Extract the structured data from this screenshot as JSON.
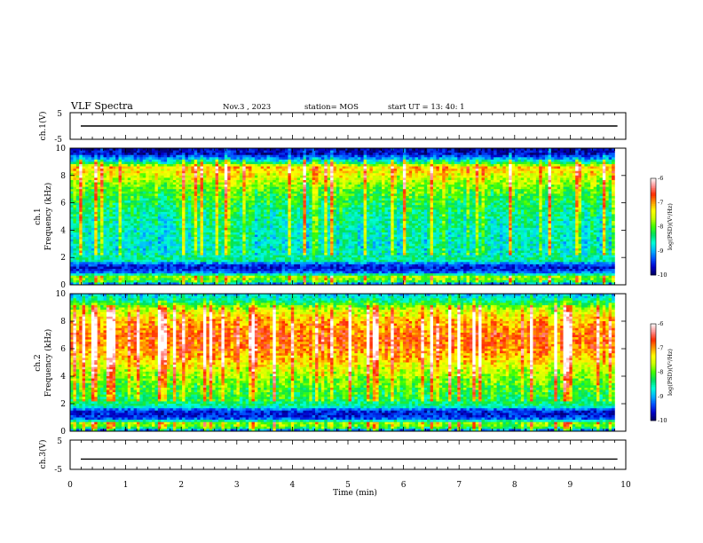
{
  "header": {
    "title": "VLF Spectra",
    "date": "Nov.3  , 2023",
    "station": "station= MOS",
    "start_ut": "start  UT =  13: 40: 1"
  },
  "colors": {
    "colormap": [
      "#000060",
      "#0000c8",
      "#0050ff",
      "#00b4ff",
      "#00ffd8",
      "#00e060",
      "#40ff00",
      "#c8ff00",
      "#ffff00",
      "#ff9a00",
      "#ff2a00",
      "#ff9090",
      "#ffffff"
    ],
    "axis": "#000000",
    "background": "#ffffff"
  },
  "chart_data": [
    {
      "id": "ch1_waveform",
      "type": "line",
      "ylabel": "ch.1(V)",
      "ylim": [
        -5,
        5
      ],
      "yticks": [
        "5",
        "-5"
      ],
      "xlim": [
        0,
        10
      ],
      "trace_level": 0
    },
    {
      "id": "ch1_spectrogram",
      "type": "heatmap",
      "ylabel": "ch.1\nFrequency (kHz)",
      "ylabel_lines": [
        "ch.1",
        "Frequency (kHz)"
      ],
      "ylim": [
        0,
        10
      ],
      "yticks": [
        "0",
        "2",
        "4",
        "6",
        "8",
        "10"
      ],
      "xlim": [
        0,
        10
      ],
      "data_end_min": 9.8,
      "colorbar": {
        "label": "log(PSD)(V²/Hz)",
        "range": [
          -10,
          -6
        ],
        "ticks": [
          "-6",
          "-7",
          "-8",
          "-9",
          "-10"
        ]
      },
      "profile": {
        "freq_khz": [
          0,
          0.3,
          0.6,
          0.9,
          1.2,
          1.5,
          1.8,
          2.2,
          3,
          4,
          5,
          6,
          7,
          8,
          8.6,
          9.0,
          9.3,
          9.6,
          10
        ],
        "log_psd": [
          -9.5,
          -8.0,
          -7.9,
          -9.2,
          -9.6,
          -9.4,
          -8.4,
          -8.6,
          -8.7,
          -8.6,
          -8.5,
          -8.3,
          -8.0,
          -7.5,
          -7.2,
          -8.6,
          -9.2,
          -9.7,
          -9.8
        ]
      }
    },
    {
      "id": "ch2_spectrogram",
      "type": "heatmap",
      "ylabel": "ch.2\nFrequency (kHz)",
      "ylabel_lines": [
        "ch.2",
        "Frequency (kHz)"
      ],
      "ylim": [
        0,
        10
      ],
      "yticks": [
        "0",
        "2",
        "4",
        "6",
        "8",
        "10"
      ],
      "xlim": [
        0,
        10
      ],
      "data_end_min": 9.8,
      "colorbar": {
        "label": "log(PSD)(V²/Hz)",
        "range": [
          -10,
          -6
        ],
        "ticks": [
          "-6",
          "-7",
          "-8",
          "-9",
          "-10"
        ]
      },
      "profile": {
        "freq_khz": [
          0,
          0.3,
          0.6,
          0.9,
          1.2,
          1.5,
          1.8,
          2.2,
          3,
          4,
          5,
          6,
          7,
          8,
          8.8,
          9.2,
          9.6,
          10
        ],
        "log_psd": [
          -9.6,
          -8.0,
          -7.9,
          -9.3,
          -9.6,
          -9.5,
          -8.5,
          -8.3,
          -8.1,
          -7.8,
          -7.3,
          -6.9,
          -6.8,
          -7.1,
          -7.6,
          -8.1,
          -8.6,
          -9.0
        ]
      }
    },
    {
      "id": "ch3_waveform",
      "type": "line",
      "ylabel": "ch.3(V)",
      "ylim": [
        -5,
        5
      ],
      "yticks": [
        "5",
        "-5"
      ],
      "xlim": [
        0,
        10
      ],
      "xlabel": "Time  (min)",
      "xticks": [
        "0",
        "1",
        "2",
        "3",
        "4",
        "5",
        "6",
        "7",
        "8",
        "9",
        "10"
      ],
      "trace_level": -1.5
    }
  ]
}
